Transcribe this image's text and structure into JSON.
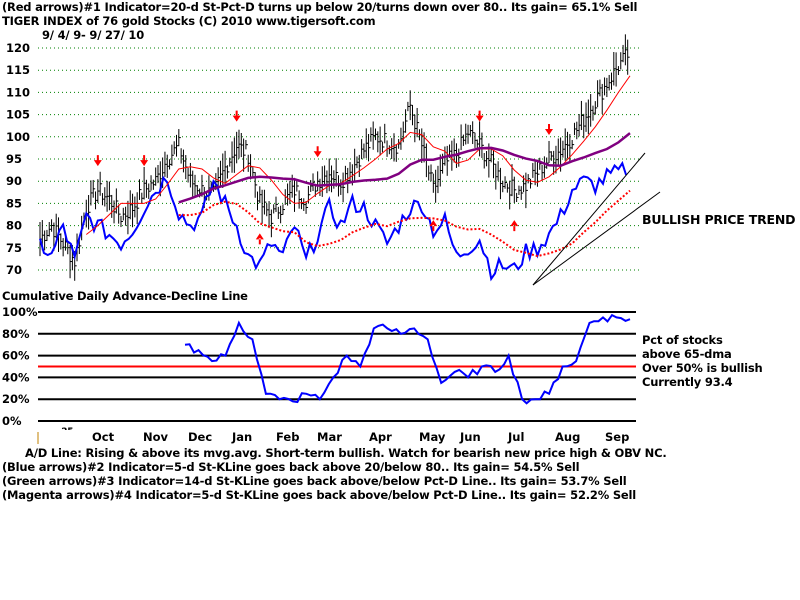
{
  "header": {
    "line1": "(Red arrows)#1 Indicator=20-d St-Pct-D turns up below 20/turns down over 80.. Its gain= 65.1% Sell",
    "line2": "TIGER INDEX of  76 gold Stocks  (C) 2010  www.tigersoft.com",
    "line3": "9/ 4/ 9- 9/ 27/ 10"
  },
  "annotations": {
    "trend": "BULLISH PRICE TREND",
    "pct1": "Pct of stocks",
    "pct2": "above 65-dma",
    "pct3": "Over 50% is bullish",
    "pct4": "Currently  93.4",
    "panel2_title": "Cumulative Daily Advance-Decline Line",
    "stub": ".25"
  },
  "footer": [
    "A/D Line: Rising & above its mvg.avg. Short-term bullish. Watch for bearish new price high & OBV NC.",
    "(Blue arrows)#2 Indicator=5-d St-KLine goes back above 20/below 80.. Its gain= 54.5% Sell",
    "(Green arrows)#3 Indicator=14-d St-KLine goes back above/below Pct-D Line.. Its gain= 53.7% Sell",
    "(Magenta arrows)#4 Indicator=5-d St-KLine goes back above/below Pct-D Line.. Its gain= 52.2% Sell"
  ],
  "chart_data": [
    {
      "type": "line",
      "title": "TIGER INDEX of 76 gold Stocks",
      "yticks": [
        120,
        115,
        110,
        105,
        100,
        95,
        90,
        85,
        80,
        75,
        70
      ],
      "ylim": [
        68,
        122
      ],
      "x_labels": [
        "Oct",
        "Nov",
        "Dec",
        "Jan",
        "Feb",
        "Mar",
        "Apr",
        "May",
        "Jun",
        "Jul",
        "Aug",
        "Sep"
      ],
      "price_weekly": [
        77,
        80,
        76,
        72,
        84,
        88,
        86,
        82,
        84,
        88,
        90,
        95,
        98,
        90,
        88,
        87,
        93,
        98,
        96,
        85,
        82,
        85,
        88,
        86,
        90,
        92,
        90,
        93,
        97,
        100,
        99,
        98,
        107,
        98,
        88,
        94,
        96,
        101,
        98,
        94,
        90,
        88,
        89,
        92,
        95,
        97,
        100,
        104,
        108,
        112,
        116,
        119
      ],
      "ad_line_weekly": [
        76,
        73,
        80,
        72,
        82,
        80,
        78,
        76,
        79,
        84,
        88,
        91,
        83,
        80,
        82,
        90,
        85,
        80,
        73,
        71,
        76,
        73,
        80,
        72,
        78,
        84,
        80,
        85,
        84,
        80,
        76,
        80,
        84,
        85,
        79,
        81,
        73,
        75,
        77,
        70,
        71,
        70,
        74,
        75,
        78,
        82,
        88,
        90,
        89,
        91,
        92,
        93
      ],
      "red_down_arrows_week": [
        5,
        9,
        17,
        24,
        38,
        44
      ],
      "red_up_arrows_week": [
        19,
        34,
        41
      ],
      "colors": {
        "price": "#000000",
        "ad_line": "#0000ff",
        "ma_short": "#ff0000",
        "ma_long": "#800080",
        "ad_ma": "#ff0000"
      }
    },
    {
      "type": "line",
      "title": "Pct of stocks above 65-dma",
      "yticks": [
        "100%",
        "80%",
        "60%",
        "40%",
        "20%",
        "0%"
      ],
      "ylim": [
        0,
        100
      ],
      "reference": 50,
      "values": [
        70,
        65,
        55,
        60,
        90,
        75,
        25,
        20,
        18,
        25,
        20,
        40,
        60,
        50,
        85,
        85,
        80,
        85,
        75,
        35,
        45,
        40,
        50,
        45,
        60,
        20,
        20,
        25,
        50,
        55,
        90,
        95,
        95,
        93.4
      ],
      "current": 93.4
    }
  ]
}
